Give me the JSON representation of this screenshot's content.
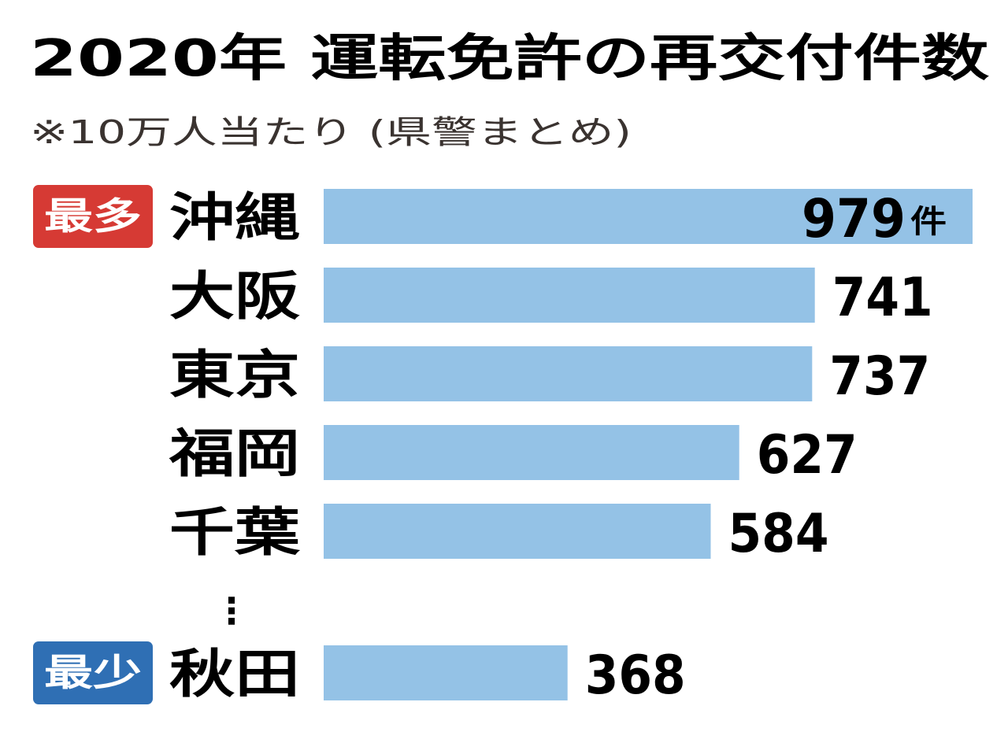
{
  "chart_data": {
    "type": "bar",
    "orientation": "horizontal",
    "title": "2020年 運転免許の再交付件数",
    "subtitle": "※10万人当たり (県警まとめ)",
    "categories": [
      "沖縄",
      "大阪",
      "東京",
      "福岡",
      "千葉",
      "秋田"
    ],
    "values": [
      979,
      741,
      737,
      627,
      584,
      368
    ],
    "value_labels": [
      "979",
      "741",
      "737",
      "627",
      "584",
      "368"
    ],
    "unit": "件",
    "gap_marker": "⋮",
    "badges": [
      {
        "label": "最多",
        "category": "沖縄",
        "color": "#d63a34"
      },
      {
        "label": "最少",
        "category": "秋田",
        "color": "#2f6fb4"
      }
    ],
    "bar_color": "#94c2e6",
    "xlim": [
      0,
      979
    ]
  }
}
